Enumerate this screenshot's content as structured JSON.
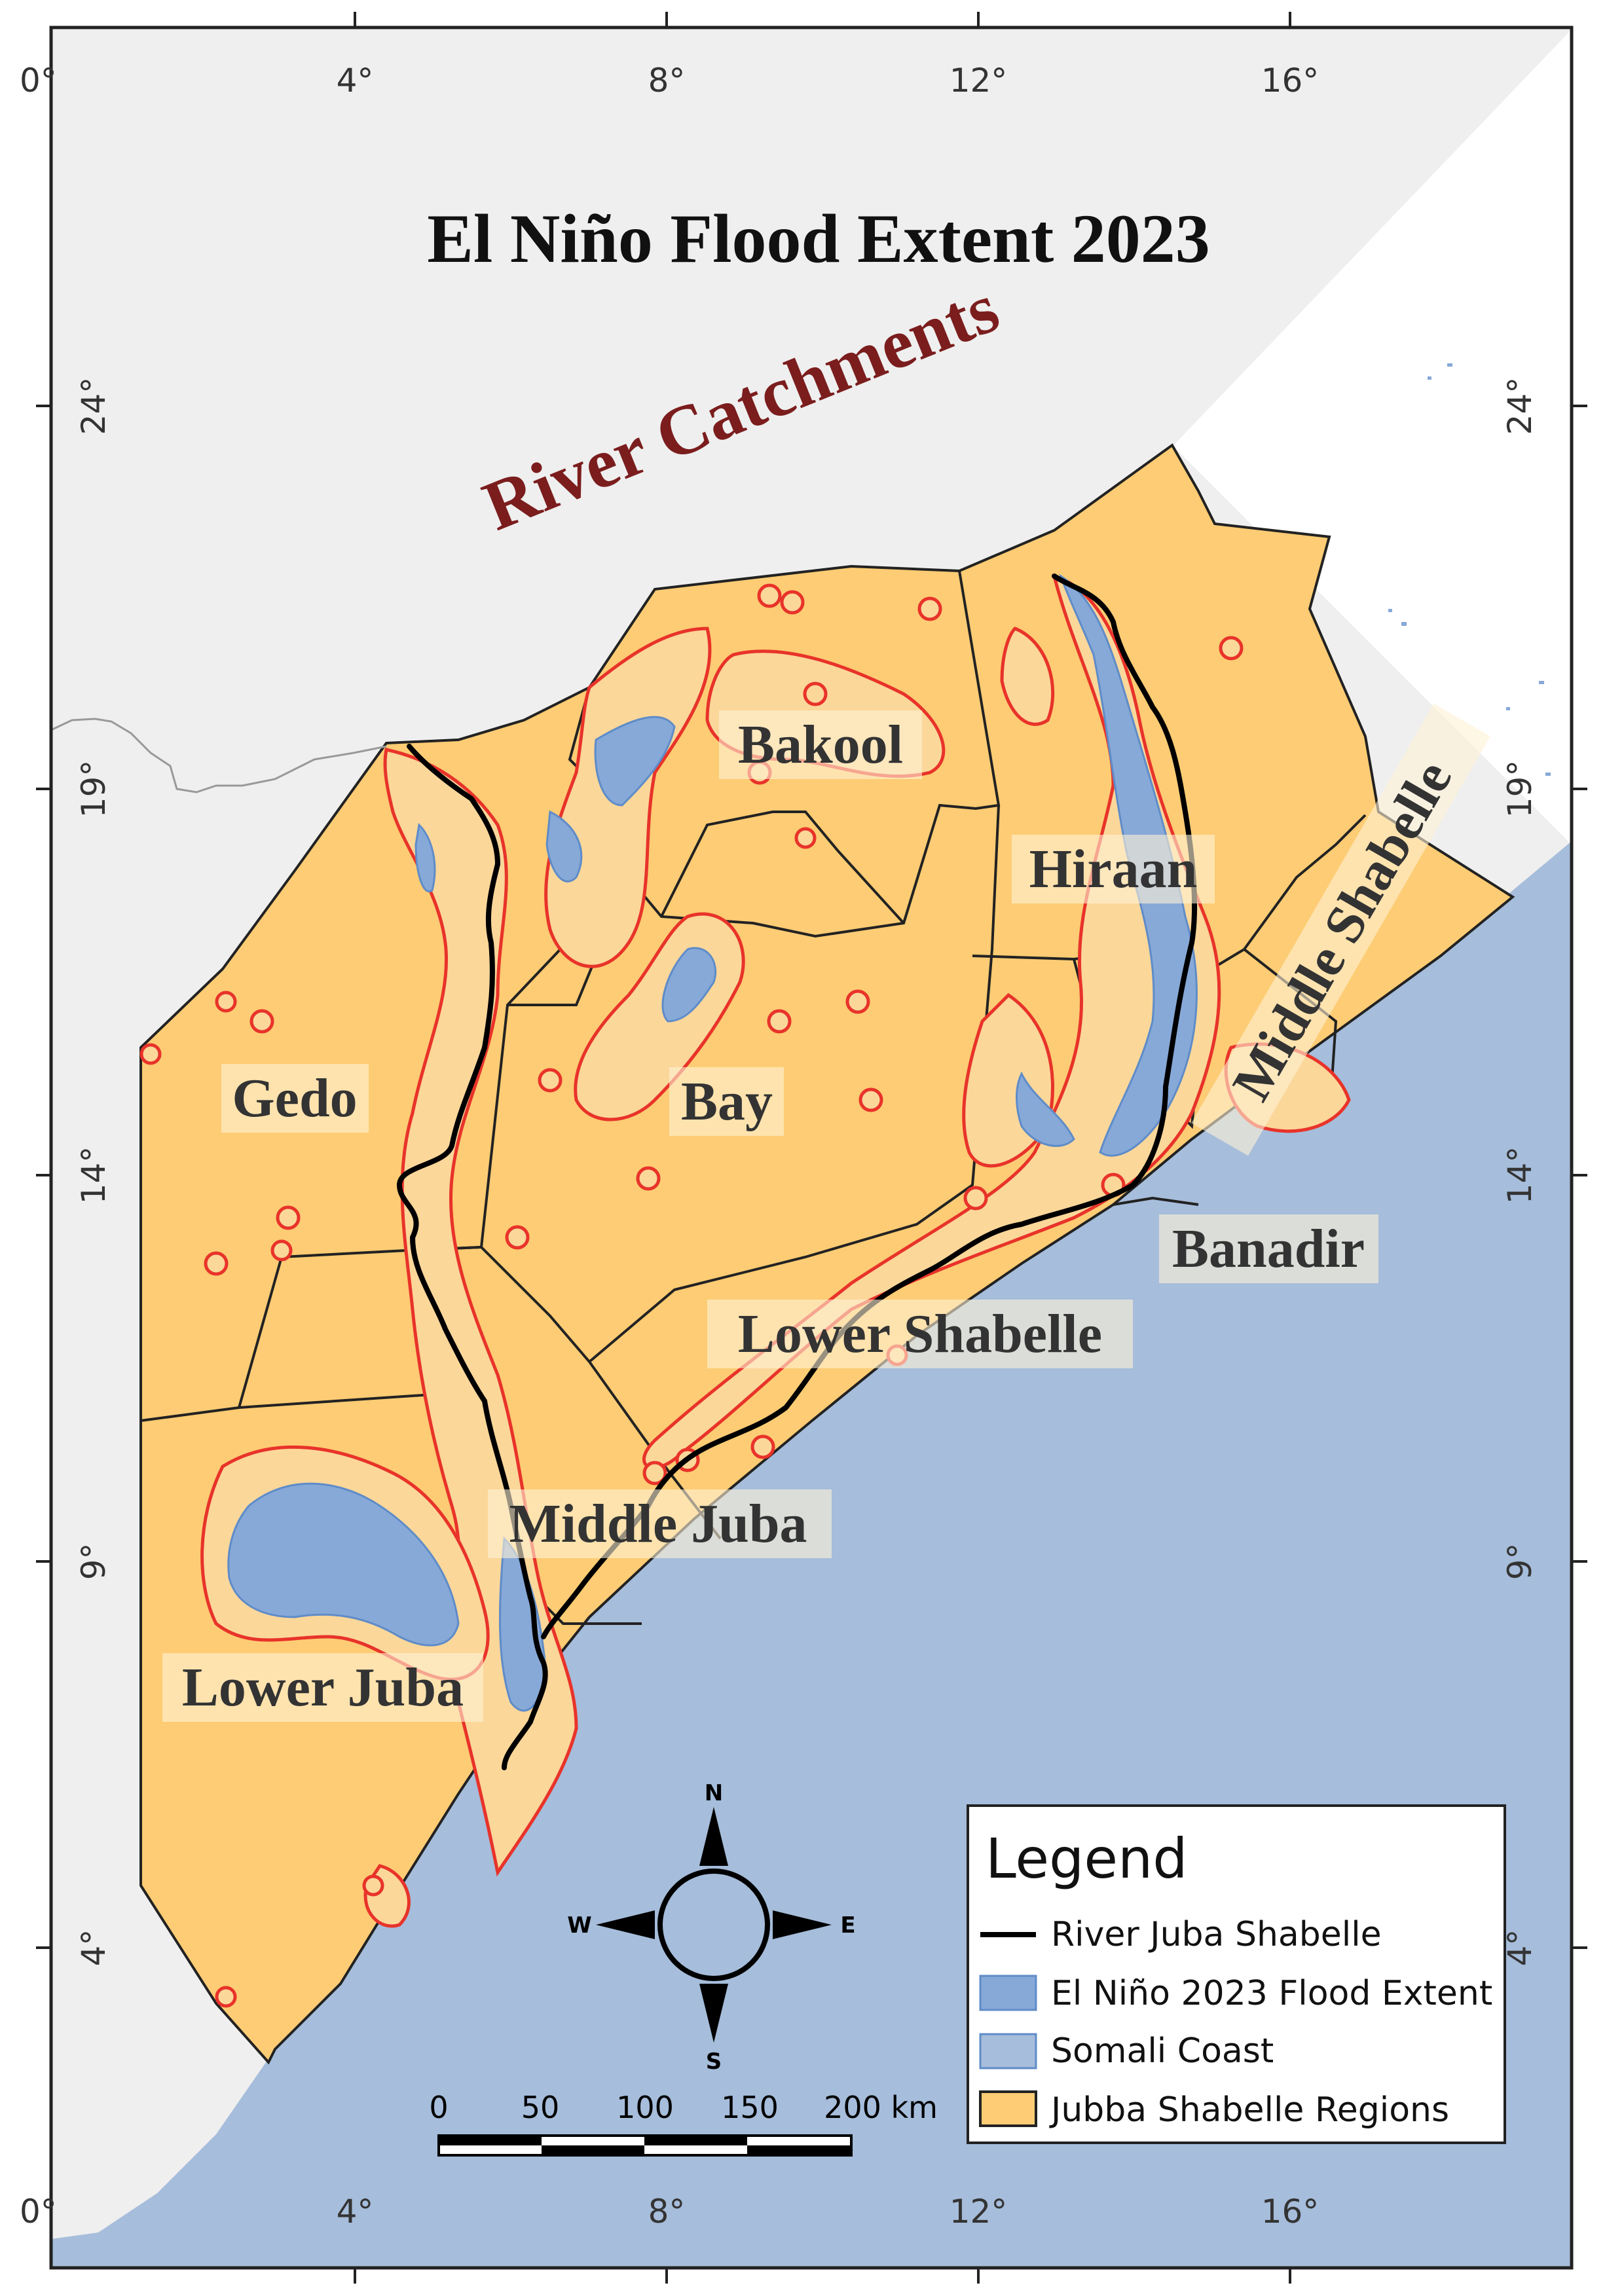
{
  "title": "El Niño Flood Extent 2023",
  "subtitle": "River Catchments",
  "regions": [
    {
      "name": "Bakool"
    },
    {
      "name": "Hiraan"
    },
    {
      "name": "Middle Shabelle"
    },
    {
      "name": "Gedo"
    },
    {
      "name": "Bay"
    },
    {
      "name": "Banadir"
    },
    {
      "name": "Lower Shabelle"
    },
    {
      "name": "Middle Juba"
    },
    {
      "name": "Lower Juba"
    }
  ],
  "grid_labels": {
    "top": [
      "0°",
      "4°",
      "8°",
      "12°",
      "16°"
    ],
    "bottom": [
      "0°",
      "4°",
      "8°",
      "12°",
      "16°"
    ],
    "left": [
      "24°",
      "19°",
      "14°",
      "9°",
      "4°"
    ],
    "right": [
      "24°",
      "19°",
      "14°",
      "9°",
      "4°"
    ]
  },
  "compass": {
    "n": "N",
    "s": "S",
    "e": "E",
    "w": "W"
  },
  "scale_bar": {
    "ticks": [
      "0",
      "50",
      "100",
      "150",
      "200 km"
    ]
  },
  "legend": {
    "title": "Legend",
    "items": [
      {
        "label": "River Juba Shabelle",
        "type": "line",
        "color": "#000000"
      },
      {
        "label": "El Niño 2023 Flood Extent",
        "type": "fill",
        "color": "#87a9d8"
      },
      {
        "label": "Somali Coast",
        "type": "fill",
        "color": "#a6bddb"
      },
      {
        "label": "Jubba Shabelle Regions",
        "type": "fill",
        "color": "#fdcc74"
      }
    ]
  },
  "colors": {
    "ocean": "#a6bddb",
    "land_background": "#efefef",
    "regions": "#fdcc74",
    "flood": "#87a9d8",
    "buffer": "#e8332a",
    "river": "#000000",
    "subtitle": "#7b1d1d"
  }
}
